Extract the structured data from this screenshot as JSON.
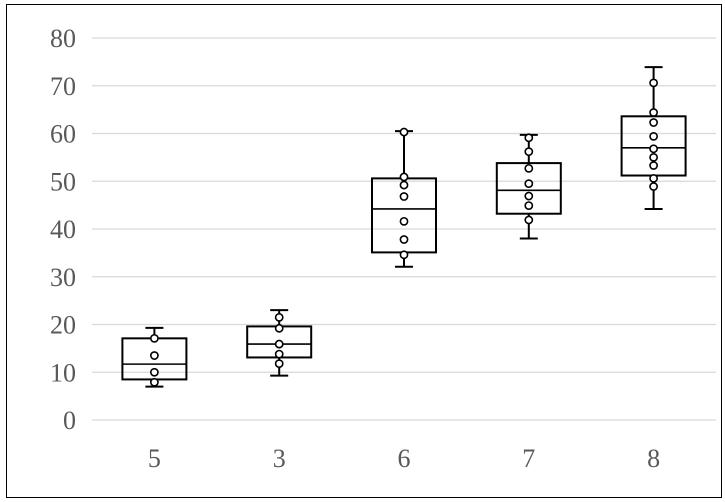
{
  "chart_data": {
    "type": "box",
    "title": "",
    "xlabel": "",
    "ylabel": "",
    "ylim": [
      0,
      80
    ],
    "yticks": [
      0,
      10,
      20,
      30,
      40,
      50,
      60,
      70,
      80
    ],
    "grid": true,
    "legend": "none",
    "colors": {
      "box_stroke": "#000000",
      "grid": "#d9d9d9",
      "tick_text": "#595959",
      "background": "#ffffff"
    },
    "categories": [
      "5",
      "3",
      "6",
      "7",
      "8"
    ],
    "boxes": [
      {
        "category": "5",
        "min": 7.0,
        "q1": 8.5,
        "median": 11.7,
        "q3": 17.1,
        "max": 19.3,
        "points": [
          7.9,
          10.0,
          13.5,
          17.1
        ]
      },
      {
        "category": "3",
        "min": 9.3,
        "q1": 13.1,
        "median": 15.9,
        "q3": 19.6,
        "max": 23.0,
        "points": [
          11.8,
          13.8,
          15.9,
          19.2,
          21.5
        ]
      },
      {
        "category": "6",
        "min": 32.1,
        "q1": 35.1,
        "median": 44.2,
        "q3": 50.6,
        "max": 60.5,
        "points": [
          34.6,
          37.8,
          41.6,
          46.8,
          49.2,
          50.9,
          60.3
        ]
      },
      {
        "category": "7",
        "min": 38.0,
        "q1": 43.2,
        "median": 48.1,
        "q3": 53.8,
        "max": 59.7,
        "points": [
          41.9,
          44.9,
          46.9,
          49.5,
          52.7,
          56.2,
          59.1
        ]
      },
      {
        "category": "8",
        "min": 44.2,
        "q1": 51.2,
        "median": 57.0,
        "q3": 63.6,
        "max": 73.9,
        "points": [
          48.9,
          50.6,
          53.3,
          55.0,
          56.8,
          59.4,
          62.3,
          64.4,
          70.6
        ]
      }
    ]
  }
}
